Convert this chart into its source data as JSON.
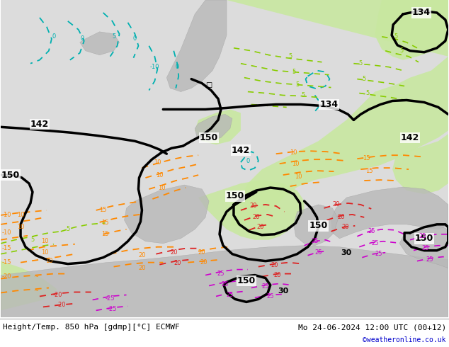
{
  "title_left": "Height/Temp. 850 hPa [gdmp][°C] ECMWF",
  "title_right": "Mo 24-06-2024 12:00 UTC (00+12)",
  "credit": "©weatheronline.co.uk",
  "fig_width": 6.34,
  "fig_height": 4.9,
  "dpi": 100,
  "bg_map": "#e8e8e8",
  "green_warm": "#c8e8a0",
  "gray_land": "#b8b8b8",
  "white_ocean": "#f0f0f0",
  "bottom_bg": "#ffffff",
  "bottom_text_color": "#000000",
  "credit_color": "#0000cc",
  "font_size_labels": 7,
  "font_size_title": 8,
  "font_size_credit": 7,
  "cyan": "#00b0b0",
  "orange": "#ff8800",
  "red": "#dd2222",
  "magenta": "#cc00cc",
  "lime": "#88cc00",
  "black": "#000000"
}
